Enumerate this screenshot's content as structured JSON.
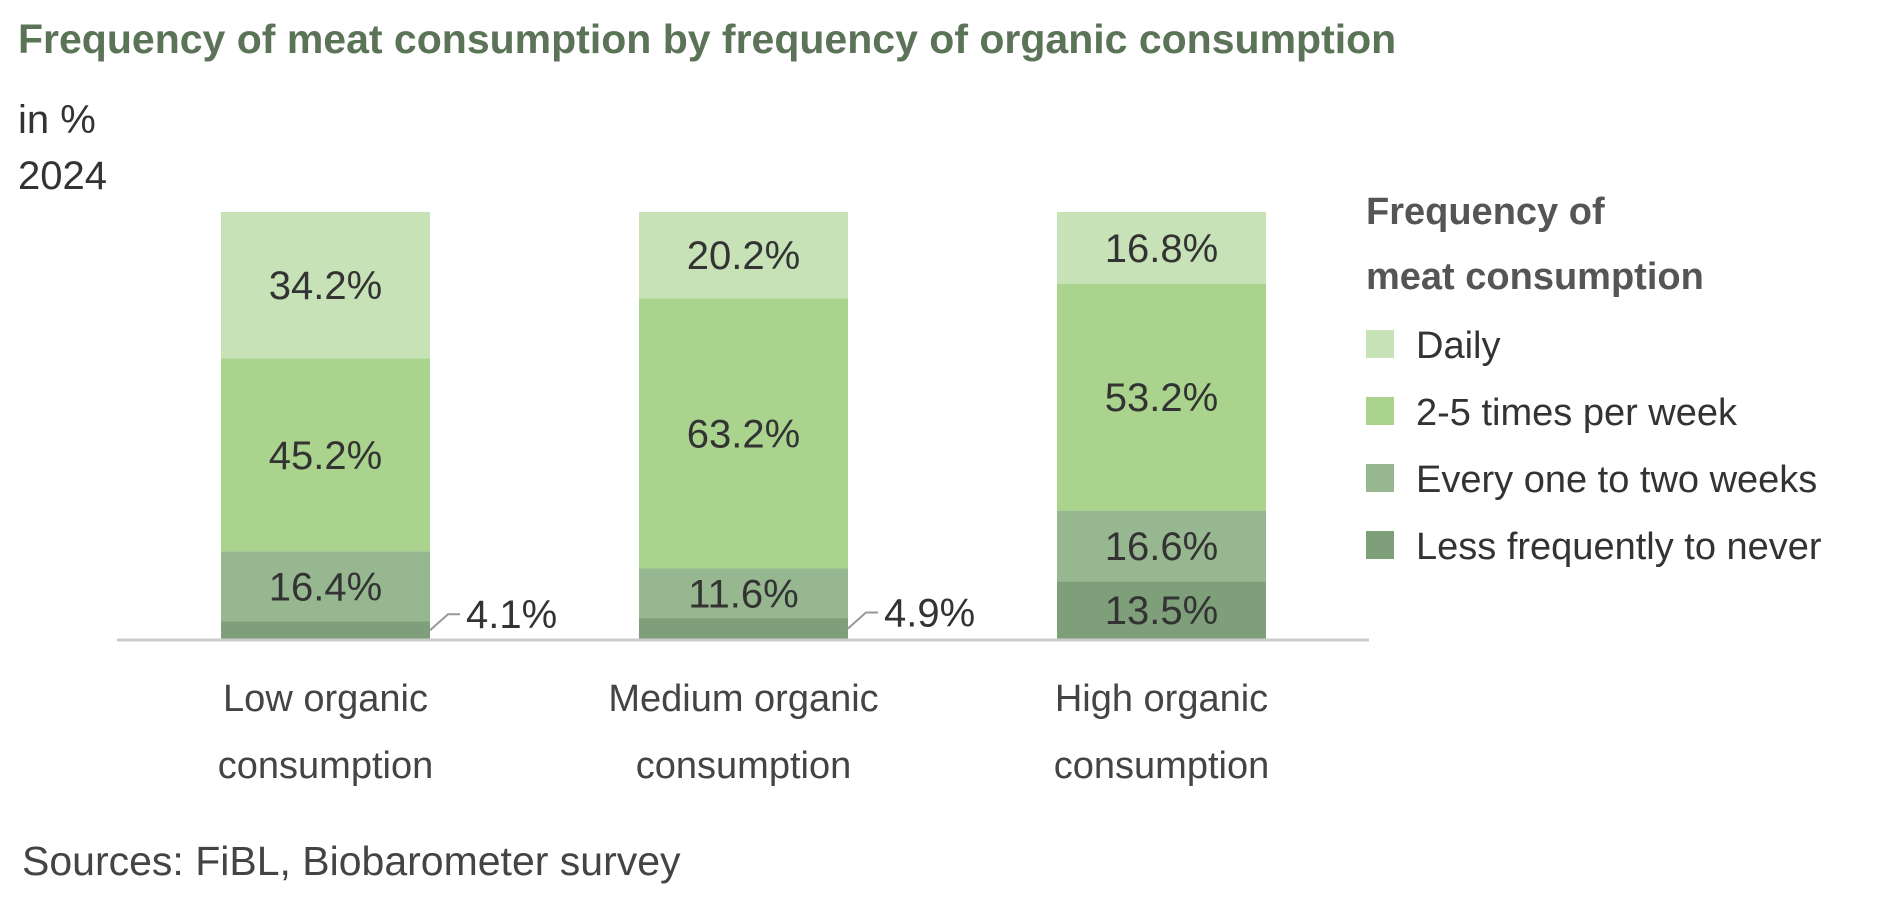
{
  "title": "Frequency of meat consumption by frequency of organic consumption",
  "subtitle_lines": [
    "in %",
    "2024"
  ],
  "source": "Sources: FiBL, Biobarometer survey",
  "colors": {
    "title": "#5b7357",
    "axis": "#cccccc",
    "leader": "#999999"
  },
  "chart_data": {
    "type": "bar",
    "stacked": true,
    "unit": "%",
    "categories": [
      [
        "Low organic",
        "consumption"
      ],
      [
        "Medium organic",
        "consumption"
      ],
      [
        "High organic",
        "consumption"
      ]
    ],
    "series": [
      {
        "name": "Less frequently to never",
        "color": "#7e9f7a",
        "values": [
          4.1,
          4.9,
          13.5
        ],
        "labels": [
          "4.1%",
          "4.9%",
          "13.5%"
        ]
      },
      {
        "name": "Every one to two weeks",
        "color": "#97b790",
        "values": [
          16.4,
          11.6,
          16.6
        ],
        "labels": [
          "16.4%",
          "11.6%",
          "16.6%"
        ]
      },
      {
        "name": "2-5 times per week",
        "color": "#aad48e",
        "values": [
          45.2,
          63.2,
          53.2
        ],
        "labels": [
          "45.2%",
          "63.2%",
          "53.2%"
        ]
      },
      {
        "name": "Daily",
        "color": "#c6e2b6",
        "values": [
          34.2,
          20.2,
          16.8
        ],
        "labels": [
          "34.2%",
          "20.2%",
          "16.8%"
        ]
      }
    ],
    "legend_title": [
      "Frequency of",
      "meat consumption"
    ],
    "legend_order": [
      "Daily",
      "2-5 times per week",
      "Every one to two weeks",
      "Less frequently to never"
    ],
    "legend_position": "right"
  }
}
